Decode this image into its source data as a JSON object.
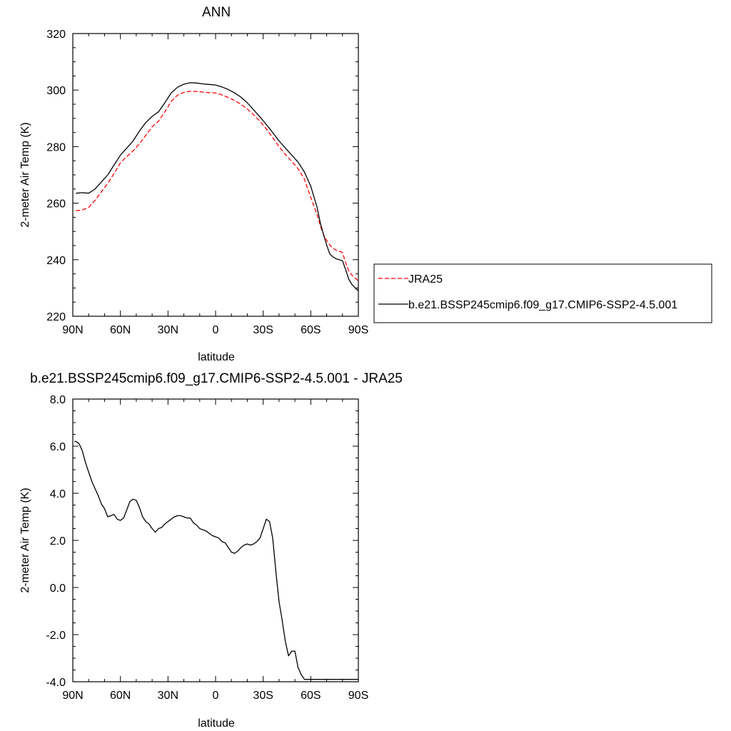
{
  "chart_data": [
    {
      "type": "line",
      "title": "ANN",
      "xlabel": "latitude",
      "ylabel": "2-meter Air Temp (K)",
      "xlim": [
        90,
        -90
      ],
      "ylim": [
        220,
        320
      ],
      "x_ticks": [
        90,
        60,
        30,
        0,
        -30,
        -60,
        -90
      ],
      "x_tick_labels": [
        "90N",
        "60N",
        "30N",
        "0",
        "30S",
        "60S",
        "90S"
      ],
      "y_ticks": [
        220,
        240,
        260,
        280,
        300,
        320
      ],
      "y_tick_labels": [
        "220",
        "240",
        "260",
        "280",
        "300",
        "320"
      ],
      "legend_position": "right",
      "series": [
        {
          "name": "JRA25",
          "color": "#ff0000",
          "style": "dashed",
          "x": [
            88,
            84,
            80,
            76,
            72,
            68,
            64,
            60,
            56,
            52,
            48,
            44,
            40,
            36,
            32,
            28,
            24,
            20,
            16,
            12,
            8,
            4,
            0,
            -4,
            -8,
            -12,
            -16,
            -20,
            -24,
            -28,
            -32,
            -36,
            -40,
            -44,
            -48,
            -52,
            -56,
            -60,
            -64,
            -66,
            -68,
            -70,
            -72,
            -74,
            -76,
            -78,
            -80,
            -82,
            -84,
            -86,
            -88,
            -90
          ],
          "y": [
            257.3,
            257.6,
            258.5,
            261.0,
            264.0,
            267.0,
            270.5,
            274.3,
            276.5,
            278.5,
            281.0,
            284.0,
            287.0,
            289.0,
            292.3,
            296.0,
            298.2,
            299.2,
            299.6,
            299.5,
            299.3,
            299.1,
            299.0,
            298.3,
            297.4,
            296.3,
            295.0,
            293.3,
            291.3,
            289.0,
            286.2,
            283.2,
            280.0,
            277.2,
            274.8,
            272.2,
            268.5,
            262.0,
            256.0,
            252.0,
            249.0,
            246.8,
            245.2,
            244.0,
            243.4,
            243.0,
            242.5,
            239.0,
            236.0,
            234.5,
            233.5,
            232.5
          ]
        },
        {
          "name": "b.e21.BSSP245cmip6.f09_g17.CMIP6-SSP2-4.5.001",
          "color": "#000000",
          "style": "solid",
          "x": [
            88,
            84,
            80,
            76,
            72,
            68,
            64,
            60,
            56,
            52,
            48,
            44,
            40,
            36,
            32,
            28,
            24,
            20,
            16,
            12,
            8,
            4,
            0,
            -4,
            -8,
            -12,
            -16,
            -20,
            -24,
            -28,
            -32,
            -36,
            -40,
            -44,
            -48,
            -52,
            -56,
            -60,
            -64,
            -66,
            -68,
            -70,
            -72,
            -74,
            -76,
            -78,
            -80,
            -82,
            -84,
            -86,
            -88,
            -90
          ],
          "y": [
            263.5,
            263.7,
            263.5,
            265.0,
            267.5,
            270.0,
            273.5,
            277.0,
            279.5,
            282.0,
            285.5,
            288.5,
            290.7,
            292.3,
            295.5,
            299.0,
            301.0,
            302.1,
            302.6,
            302.5,
            302.2,
            302.0,
            301.8,
            301.1,
            300.2,
            299.0,
            297.5,
            295.5,
            293.0,
            290.5,
            287.8,
            285.0,
            282.0,
            279.5,
            277.0,
            274.5,
            271.0,
            266.0,
            258.5,
            253.0,
            249.0,
            245.2,
            242.0,
            241.0,
            240.3,
            240.0,
            239.6,
            236.5,
            233.0,
            231.2,
            230.0,
            229.0
          ]
        }
      ]
    },
    {
      "type": "line",
      "title": "b.e21.BSSP245cmip6.f09_g17.CMIP6-SSP2-4.5.001 - JRA25",
      "xlabel": "latitude",
      "ylabel": "2-meter Air Temp (K)",
      "xlim": [
        90,
        -90
      ],
      "ylim": [
        -4.0,
        8.0
      ],
      "x_ticks": [
        90,
        60,
        30,
        0,
        -30,
        -60,
        -90
      ],
      "x_tick_labels": [
        "90N",
        "60N",
        "30N",
        "0",
        "30S",
        "60S",
        "90S"
      ],
      "y_ticks": [
        -4.0,
        -2.0,
        0.0,
        2.0,
        4.0,
        6.0,
        8.0
      ],
      "y_tick_labels": [
        "-4.0",
        "-2.0",
        "0.0",
        "2.0",
        "4.0",
        "6.0",
        "8.0"
      ],
      "series": [
        {
          "color": "#000000",
          "style": "solid",
          "x": [
            89,
            88,
            86,
            84,
            82,
            80,
            78,
            76,
            74,
            72,
            70,
            68,
            66,
            64,
            62,
            60,
            58,
            56,
            54,
            52,
            50,
            48,
            46,
            44,
            42,
            40,
            38,
            36,
            34,
            32,
            30,
            28,
            26,
            24,
            22,
            20,
            18,
            16,
            14,
            12,
            10,
            8,
            6,
            4,
            2,
            0,
            -2,
            -4,
            -6,
            -8,
            -10,
            -12,
            -14,
            -16,
            -18,
            -20,
            -22,
            -24,
            -26,
            -28,
            -30,
            -32,
            -34,
            -36,
            -38,
            -40,
            -42,
            -44,
            -46,
            -48,
            -50,
            -52,
            -54,
            -56,
            -58,
            -60,
            -62,
            -64,
            -66,
            -68,
            -70,
            -72,
            -74,
            -76,
            -78,
            -80,
            -82,
            -84,
            -86,
            -88,
            -90
          ],
          "y": [
            6.2,
            6.2,
            6.1,
            5.8,
            5.3,
            4.9,
            4.5,
            4.2,
            3.9,
            3.55,
            3.35,
            3.0,
            3.05,
            3.1,
            2.9,
            2.85,
            2.95,
            3.3,
            3.65,
            3.75,
            3.7,
            3.4,
            3.0,
            2.8,
            2.7,
            2.5,
            2.35,
            2.5,
            2.55,
            2.7,
            2.8,
            2.9,
            3.0,
            3.05,
            3.05,
            3.0,
            2.95,
            2.95,
            2.75,
            2.65,
            2.5,
            2.45,
            2.4,
            2.3,
            2.2,
            2.15,
            2.1,
            1.95,
            1.9,
            1.7,
            1.5,
            1.45,
            1.55,
            1.7,
            1.8,
            1.85,
            1.8,
            1.85,
            1.95,
            2.1,
            2.5,
            2.9,
            2.8,
            2.1,
            0.7,
            -0.6,
            -1.4,
            -2.3,
            -2.9,
            -2.7,
            -2.7,
            -3.4,
            -3.7,
            -3.9,
            -3.9,
            -3.9,
            -3.9,
            -3.9,
            -3.9,
            -3.9,
            -3.9,
            -3.9,
            -3.9,
            -3.9,
            -3.9,
            -3.9,
            -3.9,
            -3.9,
            -3.9,
            -3.9,
            -3.9
          ]
        }
      ]
    }
  ]
}
